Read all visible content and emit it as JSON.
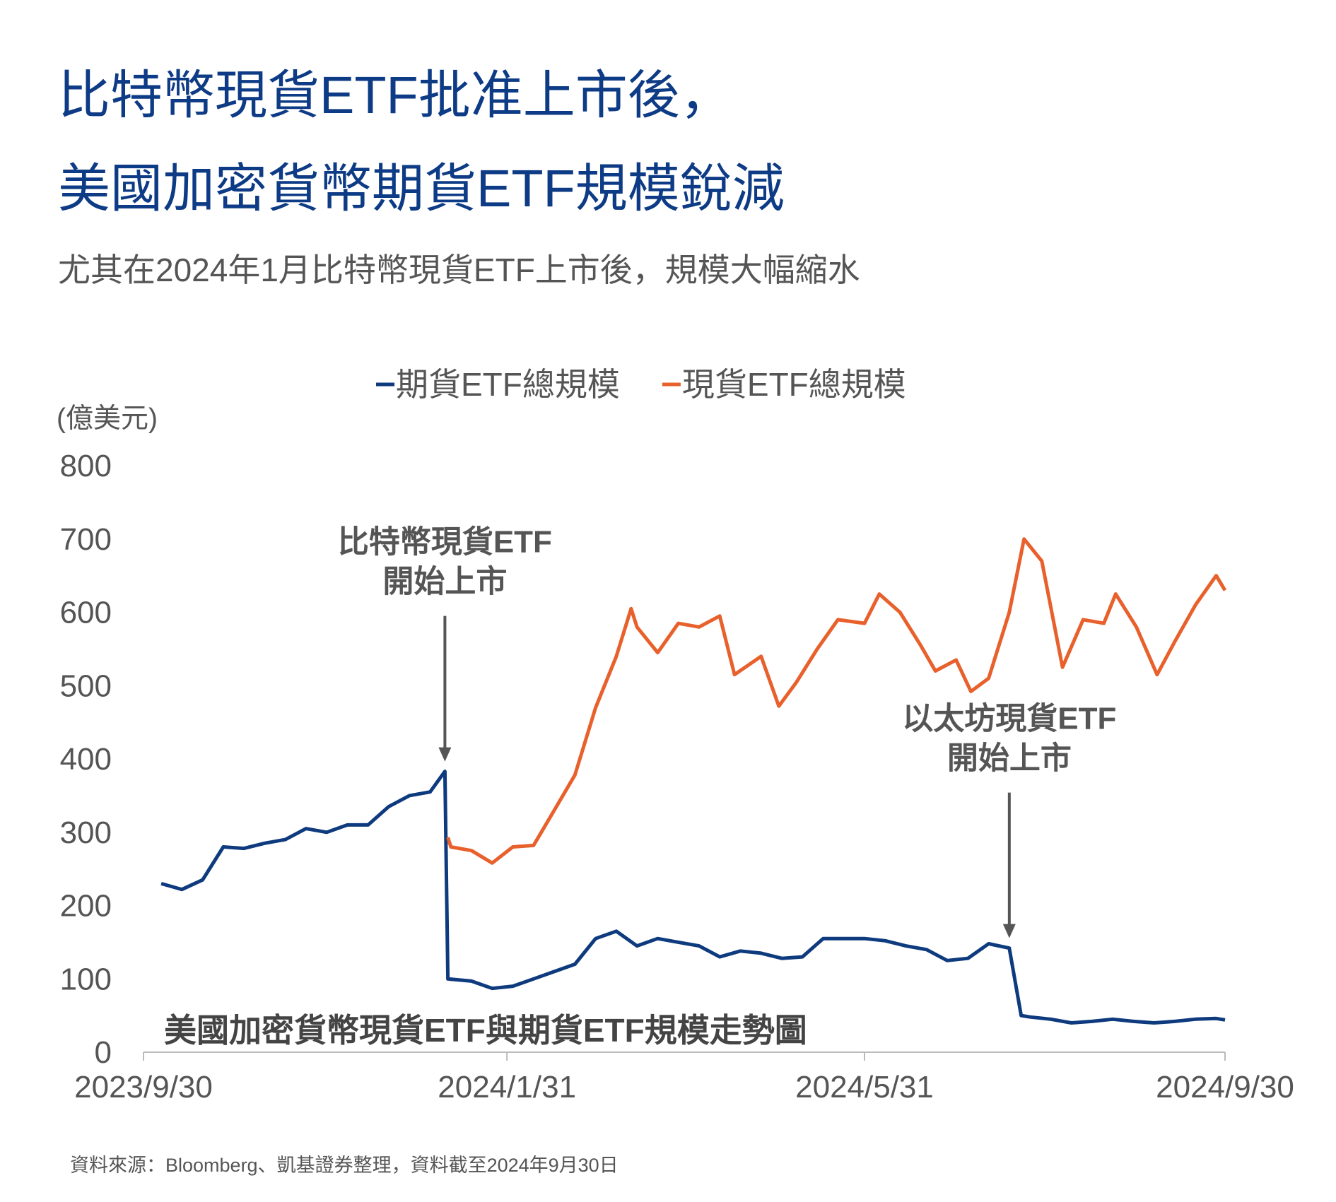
{
  "chart_data": {
    "type": "line",
    "title": [
      "比特幣現貨ETF批准上市後，",
      "美國加密貨幣期貨ETF規模銳減"
    ],
    "subtitle": "尤其在2024年1月比特幣現貨ETF上市後，規模大幅縮水",
    "y_label": "(億美元)",
    "note": "美國加密貨幣現貨ETF與期貨ETF規模走勢圖",
    "source": "資料來源：Bloomberg、凱基證券整理，資料截至2024年9月30日",
    "annotations": [
      {
        "text": [
          "比特幣現貨ETF",
          "開始上市"
        ],
        "x": "2024/1/10",
        "y": 383
      },
      {
        "text": [
          "以太坊現貨ETF",
          "開始上市"
        ],
        "x": "2024/7/19",
        "y": 142
      }
    ],
    "xlim": [
      "2023/9/30",
      "2024/9/30"
    ],
    "xticks": [
      "2023/9/30",
      "2024/1/31",
      "2024/5/31",
      "2024/9/30"
    ],
    "ylim": [
      0,
      800
    ],
    "yticks": [
      0,
      100,
      200,
      300,
      400,
      500,
      600,
      700,
      800
    ],
    "legend": "top",
    "series": [
      {
        "name": "期貨ETF總規模",
        "color": "#0e3a7e",
        "x": [
          "2023/10/6",
          "2023/10/13",
          "2023/10/20",
          "2023/10/27",
          "2023/11/3",
          "2023/11/10",
          "2023/11/17",
          "2023/11/24",
          "2023/12/1",
          "2023/12/8",
          "2023/12/15",
          "2023/12/22",
          "2023/12/29",
          "2024/1/5",
          "2024/1/10",
          "2024/1/11",
          "2024/1/19",
          "2024/1/26",
          "2024/2/2",
          "2024/2/9",
          "2024/2/16",
          "2024/2/23",
          "2024/3/1",
          "2024/3/8",
          "2024/3/15",
          "2024/3/22",
          "2024/3/29",
          "2024/4/5",
          "2024/4/12",
          "2024/4/19",
          "2024/4/26",
          "2024/5/3",
          "2024/5/10",
          "2024/5/17",
          "2024/5/24",
          "2024/5/31",
          "2024/6/7",
          "2024/6/14",
          "2024/6/21",
          "2024/6/28",
          "2024/7/5",
          "2024/7/12",
          "2024/7/19",
          "2024/7/23",
          "2024/7/26",
          "2024/8/2",
          "2024/8/9",
          "2024/8/16",
          "2024/8/23",
          "2024/8/30",
          "2024/9/6",
          "2024/9/13",
          "2024/9/20",
          "2024/9/27",
          "2024/9/30"
        ],
        "values": [
          230,
          222,
          235,
          280,
          278,
          285,
          290,
          305,
          300,
          310,
          310,
          335,
          350,
          355,
          383,
          100,
          97,
          87,
          90,
          100,
          110,
          120,
          155,
          165,
          145,
          155,
          150,
          145,
          130,
          138,
          135,
          128,
          130,
          155,
          155,
          155,
          152,
          145,
          140,
          125,
          128,
          148,
          142,
          50,
          48,
          45,
          40,
          42,
          45,
          42,
          40,
          42,
          45,
          46,
          44
        ]
      },
      {
        "name": "現貨ETF總規模",
        "color": "#e8602c",
        "x": [
          "2024/1/11",
          "2024/1/12",
          "2024/1/19",
          "2024/1/26",
          "2024/2/2",
          "2024/2/9",
          "2024/2/16",
          "2024/2/23",
          "2024/3/1",
          "2024/3/8",
          "2024/3/13",
          "2024/3/15",
          "2024/3/22",
          "2024/3/29",
          "2024/4/5",
          "2024/4/12",
          "2024/4/17",
          "2024/4/26",
          "2024/5/2",
          "2024/5/8",
          "2024/5/15",
          "2024/5/22",
          "2024/5/31",
          "2024/6/5",
          "2024/6/12",
          "2024/6/19",
          "2024/6/24",
          "2024/7/1",
          "2024/7/6",
          "2024/7/12",
          "2024/7/19",
          "2024/7/24",
          "2024/7/30",
          "2024/8/6",
          "2024/8/13",
          "2024/8/20",
          "2024/8/24",
          "2024/8/31",
          "2024/9/7",
          "2024/9/13",
          "2024/9/20",
          "2024/9/27",
          "2024/9/30"
        ],
        "values": [
          293,
          280,
          275,
          258,
          280,
          282,
          330,
          378,
          470,
          540,
          605,
          580,
          545,
          585,
          580,
          595,
          515,
          540,
          472,
          505,
          550,
          590,
          585,
          625,
          600,
          555,
          520,
          535,
          492,
          510,
          600,
          700,
          670,
          525,
          590,
          585,
          625,
          580,
          515,
          560,
          610,
          650,
          630
        ]
      }
    ]
  }
}
